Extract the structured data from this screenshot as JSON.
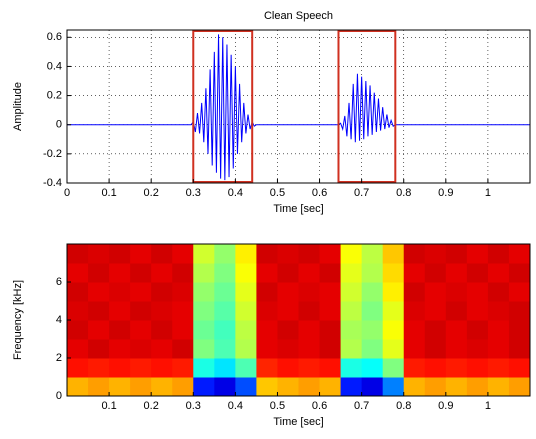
{
  "chart_data": [
    {
      "type": "line",
      "title": "Clean Speech",
      "xlabel": "Time [sec]",
      "ylabel": "Amplitude",
      "x": [
        0,
        0.295,
        0.3,
        0.305,
        0.31,
        0.315,
        0.32,
        0.325,
        0.33,
        0.335,
        0.34,
        0.345,
        0.35,
        0.355,
        0.36,
        0.365,
        0.37,
        0.375,
        0.38,
        0.385,
        0.39,
        0.395,
        0.4,
        0.405,
        0.41,
        0.415,
        0.42,
        0.425,
        0.43,
        0.435,
        0.44,
        0.445,
        0.45,
        0.645,
        0.65,
        0.655,
        0.66,
        0.665,
        0.67,
        0.675,
        0.68,
        0.685,
        0.69,
        0.695,
        0.7,
        0.705,
        0.71,
        0.715,
        0.72,
        0.725,
        0.73,
        0.735,
        0.74,
        0.745,
        0.75,
        0.755,
        0.76,
        0.765,
        0.77,
        0.775,
        0.78,
        1.1
      ],
      "values": [
        0,
        0,
        0.02,
        -0.05,
        0.08,
        -0.06,
        0.15,
        -0.12,
        0.25,
        -0.2,
        0.38,
        -0.28,
        0.5,
        -0.33,
        0.62,
        -0.37,
        0.6,
        -0.38,
        0.55,
        -0.36,
        0.48,
        -0.3,
        0.4,
        -0.2,
        0.28,
        -0.12,
        0.15,
        -0.06,
        0.07,
        -0.03,
        0.02,
        -0.01,
        0,
        0,
        0.01,
        -0.03,
        0.06,
        -0.08,
        0.15,
        -0.1,
        0.28,
        -0.12,
        0.35,
        -0.11,
        0.33,
        -0.1,
        0.3,
        -0.08,
        0.27,
        -0.07,
        0.22,
        -0.05,
        0.18,
        -0.04,
        0.12,
        -0.03,
        0.07,
        -0.02,
        0.03,
        -0.01,
        0,
        0
      ],
      "color": "#0000ff",
      "xlim": [
        0,
        1.1
      ],
      "ylim": [
        -0.4,
        0.65
      ],
      "xticks": [
        0,
        0.1,
        0.2,
        0.3,
        0.4,
        0.5,
        0.6,
        0.7,
        0.8,
        0.9,
        1
      ],
      "yticks": [
        -0.4,
        -0.2,
        0,
        0.2,
        0.4,
        0.6
      ],
      "grid": true,
      "highlight_spans": [
        [
          0.3,
          0.44
        ],
        [
          0.645,
          0.78
        ]
      ],
      "highlight_color": "#d03020"
    },
    {
      "type": "heatmap",
      "xlabel": "Time [sec]",
      "ylabel": "Frequency [kHz]",
      "colormap": "jet",
      "x_edges": [
        0,
        0.05,
        0.1,
        0.15,
        0.2,
        0.25,
        0.3,
        0.35,
        0.4,
        0.45,
        0.5,
        0.55,
        0.6,
        0.65,
        0.7,
        0.75,
        0.8,
        0.85,
        0.9,
        0.95,
        1,
        1.05,
        1.1
      ],
      "y_edges": [
        0,
        1,
        2,
        3,
        4,
        5,
        6,
        7,
        8
      ],
      "z": [
        [
          0.7,
          0.72,
          0.7,
          0.72,
          0.7,
          0.72,
          0.15,
          0.1,
          0.2,
          0.68,
          0.7,
          0.72,
          0.7,
          0.15,
          0.1,
          0.25,
          0.7,
          0.72,
          0.7,
          0.72,
          0.7,
          0.72
        ],
        [
          0.86,
          0.85,
          0.86,
          0.85,
          0.86,
          0.85,
          0.4,
          0.35,
          0.45,
          0.84,
          0.86,
          0.85,
          0.86,
          0.4,
          0.38,
          0.5,
          0.85,
          0.86,
          0.85,
          0.86,
          0.85,
          0.86
        ],
        [
          0.9,
          0.92,
          0.9,
          0.91,
          0.9,
          0.92,
          0.5,
          0.45,
          0.55,
          0.9,
          0.91,
          0.9,
          0.92,
          0.55,
          0.5,
          0.6,
          0.9,
          0.92,
          0.9,
          0.91,
          0.9,
          0.92
        ],
        [
          0.92,
          0.9,
          0.92,
          0.9,
          0.92,
          0.9,
          0.48,
          0.44,
          0.56,
          0.9,
          0.92,
          0.9,
          0.92,
          0.54,
          0.52,
          0.62,
          0.9,
          0.92,
          0.9,
          0.92,
          0.9,
          0.92
        ],
        [
          0.91,
          0.92,
          0.9,
          0.92,
          0.91,
          0.9,
          0.5,
          0.46,
          0.58,
          0.91,
          0.9,
          0.92,
          0.9,
          0.56,
          0.5,
          0.6,
          0.91,
          0.9,
          0.92,
          0.9,
          0.91,
          0.92
        ],
        [
          0.92,
          0.9,
          0.91,
          0.9,
          0.92,
          0.91,
          0.52,
          0.48,
          0.6,
          0.92,
          0.9,
          0.91,
          0.9,
          0.58,
          0.52,
          0.64,
          0.92,
          0.9,
          0.91,
          0.9,
          0.92,
          0.9
        ],
        [
          0.9,
          0.92,
          0.9,
          0.92,
          0.9,
          0.92,
          0.55,
          0.5,
          0.62,
          0.9,
          0.92,
          0.9,
          0.92,
          0.6,
          0.55,
          0.66,
          0.9,
          0.92,
          0.9,
          0.92,
          0.9,
          0.92
        ],
        [
          0.92,
          0.91,
          0.92,
          0.9,
          0.92,
          0.9,
          0.58,
          0.52,
          0.64,
          0.92,
          0.91,
          0.92,
          0.9,
          0.62,
          0.56,
          0.68,
          0.92,
          0.91,
          0.92,
          0.9,
          0.92,
          0.9
        ]
      ],
      "xlim": [
        0,
        1.1
      ],
      "ylim": [
        0,
        8
      ],
      "xticks": [
        0.1,
        0.2,
        0.3,
        0.4,
        0.5,
        0.6,
        0.7,
        0.8,
        0.9,
        1
      ],
      "yticks": [
        0,
        2,
        4,
        6
      ]
    }
  ]
}
